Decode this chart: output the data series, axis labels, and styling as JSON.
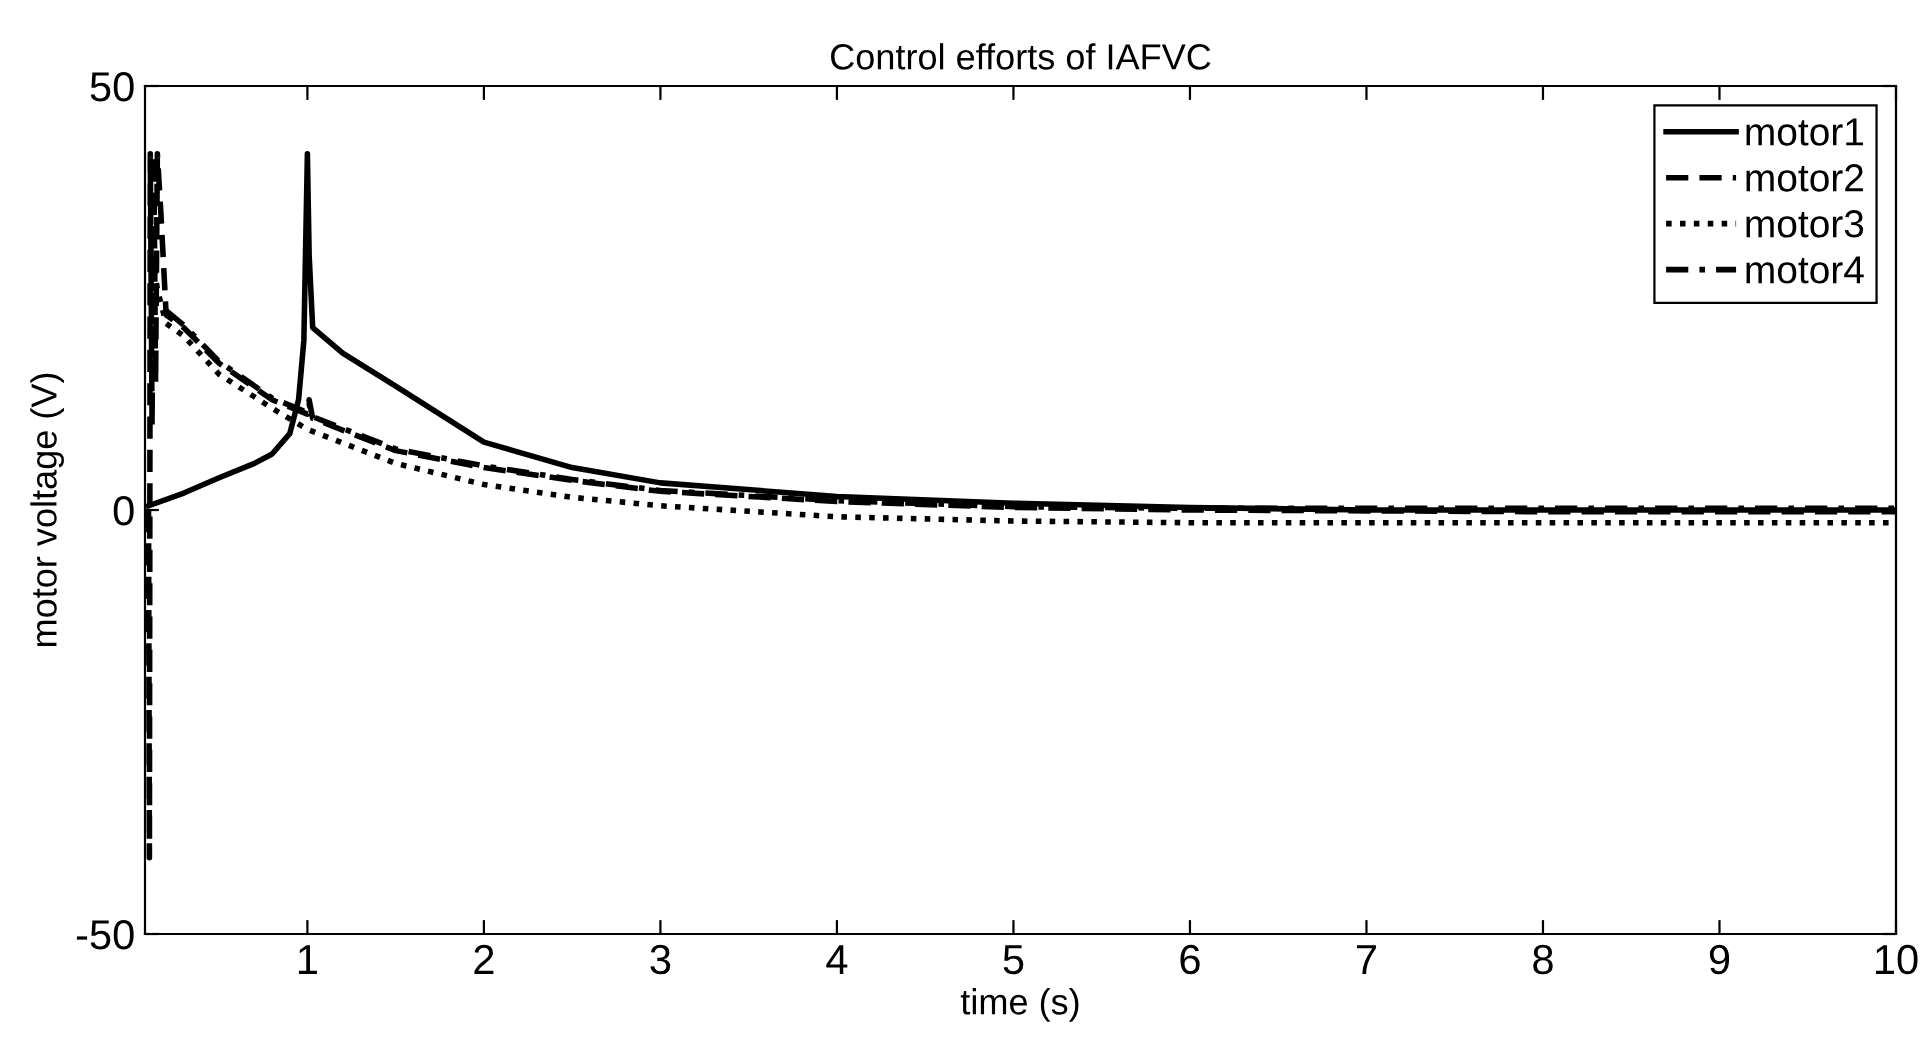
{
  "chart_data": {
    "type": "line",
    "title": "Control efforts of IAFVC",
    "xlabel": "time (s)",
    "ylabel": "motor voltage (V)",
    "xlim": [
      0.08,
      10
    ],
    "xticks": [
      1,
      2,
      3,
      4,
      5,
      6,
      7,
      8,
      9,
      10
    ],
    "ylim": [
      -50,
      50
    ],
    "yticks": [
      -50,
      0,
      50
    ],
    "grid": false,
    "legend": "top right",
    "series": [
      {
        "name": "motor1",
        "color": "#000000",
        "line_style": "solid",
        "x": [
          0.1,
          0.3,
          0.5,
          0.7,
          0.8,
          0.9,
          0.95,
          0.98,
          1.0,
          1.01,
          1.03,
          1.2,
          1.5,
          2.0,
          2.5,
          3.0,
          4.0,
          5.0,
          6.0,
          7.0,
          8.0,
          10.0
        ],
        "values": [
          0.5,
          2,
          3.8,
          5.5,
          6.6,
          9,
          13,
          20,
          42,
          30,
          21.5,
          18.5,
          14.6,
          8,
          5,
          3.2,
          1.6,
          0.8,
          0.3,
          0,
          0,
          0
        ]
      },
      {
        "name": "motor2",
        "color": "#000000",
        "line_style": "dashed",
        "x": [
          0.1,
          0.105,
          0.11,
          0.12,
          0.13,
          0.14,
          0.15,
          0.17,
          0.2,
          0.3,
          0.5,
          0.8,
          1.0,
          1.01,
          1.03,
          1.5,
          2.0,
          2.5,
          3.0,
          4.0,
          5.0,
          6.0,
          8.0,
          10.0
        ],
        "values": [
          0,
          -41,
          42,
          10,
          42,
          15,
          42,
          35,
          23,
          21.5,
          17.3,
          13,
          11.3,
          13,
          10.8,
          7,
          5,
          3.5,
          2.2,
          1,
          0.3,
          0,
          -0.2,
          -0.2
        ]
      },
      {
        "name": "motor3",
        "color": "#000000",
        "line_style": "dotted",
        "x": [
          0.12,
          0.15,
          0.2,
          0.3,
          0.5,
          0.8,
          1.0,
          1.5,
          2.0,
          2.5,
          3.0,
          4.0,
          5.0,
          6.0,
          8.0,
          10.0
        ],
        "values": [
          30,
          26,
          22,
          20.5,
          16,
          12,
          9.5,
          5.5,
          3,
          1.5,
          0.5,
          -0.8,
          -1.3,
          -1.5,
          -1.5,
          -1.5
        ]
      },
      {
        "name": "motor4",
        "color": "#000000",
        "line_style": "dashdot",
        "x": [
          0.2,
          0.3,
          0.5,
          0.8,
          1.0,
          1.01,
          1.03,
          1.5,
          2.0,
          2.5,
          3.0,
          4.0,
          5.0,
          6.0,
          8.0,
          10.0
        ],
        "values": [
          23.5,
          21.8,
          17.5,
          13.2,
          11.5,
          12.5,
          11,
          7.2,
          5.2,
          3.6,
          2.3,
          1.1,
          0.4,
          0.2,
          0.2,
          0.2
        ]
      }
    ]
  }
}
